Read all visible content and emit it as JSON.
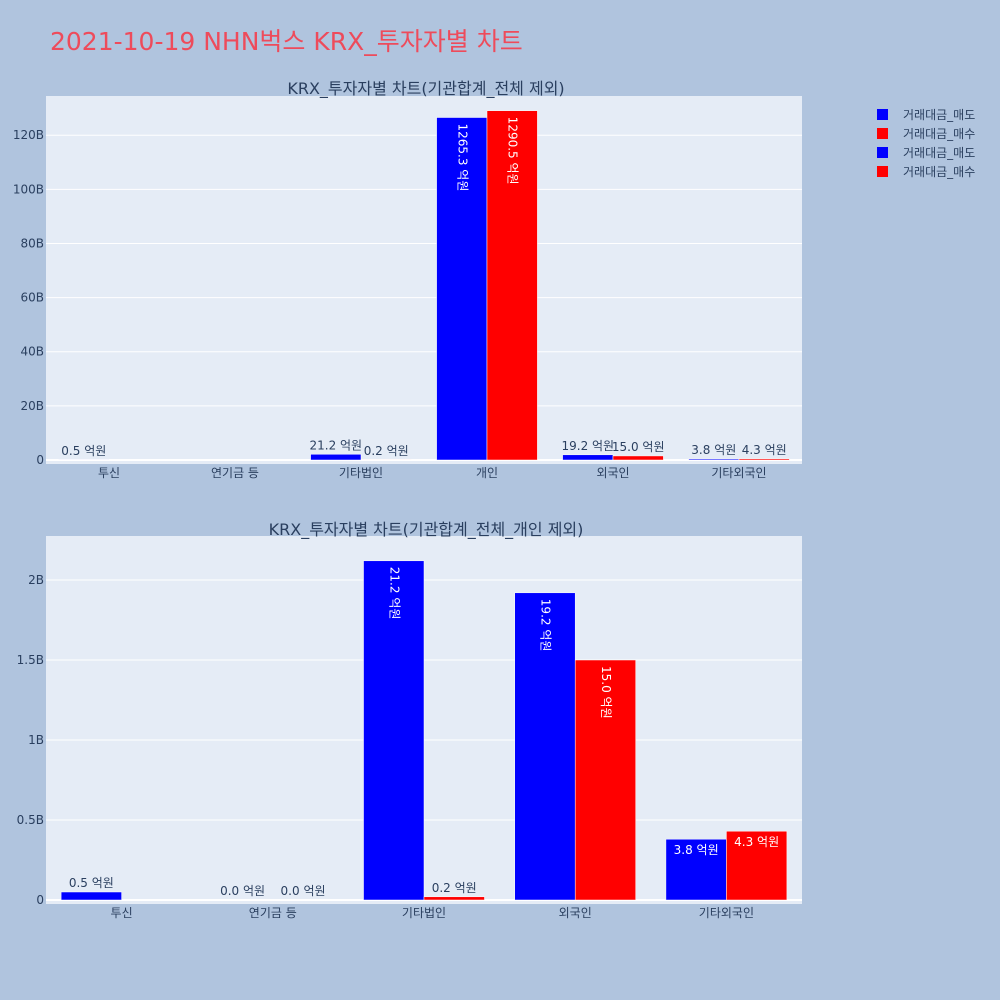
{
  "title": "2021-10-19 NHN벅스 KRX_투자자별 차트",
  "legend": [
    {
      "label": "거래대금_매도",
      "color": "#0000ff"
    },
    {
      "label": "거래대금_매수",
      "color": "#ff0000"
    },
    {
      "label": "거래대금_매도",
      "color": "#0000ff"
    },
    {
      "label": "거래대금_매수",
      "color": "#ff0000"
    }
  ],
  "chart_data": [
    {
      "type": "bar",
      "title": "KRX_투자자별 차트(기관합계_전체 제외)",
      "categories": [
        "투신",
        "연기금 등",
        "기타법인",
        "개인",
        "외국인",
        "기타외국인"
      ],
      "ylim": [
        0,
        133000000000
      ],
      "yticks": [
        0,
        20000000000,
        40000000000,
        60000000000,
        80000000000,
        100000000000,
        120000000000
      ],
      "ytick_labels": [
        "0",
        "20B",
        "40B",
        "60B",
        "80B",
        "100B",
        "120B"
      ],
      "series": [
        {
          "name": "거래대금_매도",
          "color": "#0000ff",
          "values": [
            50000000,
            0,
            2120000000,
            126530000000,
            1920000000,
            380000000
          ],
          "labels": [
            "0.5 억원",
            "",
            "21.2 억원",
            "1265.3 억원",
            "19.2 억원",
            "3.8 억원"
          ]
        },
        {
          "name": "거래대금_매수",
          "color": "#ff0000",
          "values": [
            0,
            0,
            20000000,
            129050000000,
            1500000000,
            430000000
          ],
          "labels": [
            "",
            "",
            "0.2 억원",
            "1290.5 억원",
            "15.0 억원",
            "4.3 억원"
          ]
        }
      ]
    },
    {
      "type": "bar",
      "title": "KRX_투자자별 차트(기관합계_전체_개인 제외)",
      "categories": [
        "투신",
        "연기금 등",
        "기타법인",
        "외국인",
        "기타외국인"
      ],
      "ylim": [
        0,
        2250000000
      ],
      "yticks": [
        0,
        500000000,
        1000000000,
        1500000000,
        2000000000
      ],
      "ytick_labels": [
        "0",
        "0.5B",
        "1B",
        "1.5B",
        "2B"
      ],
      "series": [
        {
          "name": "거래대금_매도",
          "color": "#0000ff",
          "values": [
            50000000,
            0,
            2120000000,
            1920000000,
            380000000
          ],
          "labels": [
            "0.5 억원",
            "0.0 억원",
            "21.2 억원",
            "19.2 억원",
            "3.8 억원"
          ]
        },
        {
          "name": "거래대금_매수",
          "color": "#ff0000",
          "values": [
            0,
            0,
            20000000,
            1500000000,
            430000000
          ],
          "labels": [
            "",
            "0.0 억원",
            "0.2 억원",
            "15.0 억원",
            "4.3 억원"
          ]
        }
      ]
    }
  ]
}
